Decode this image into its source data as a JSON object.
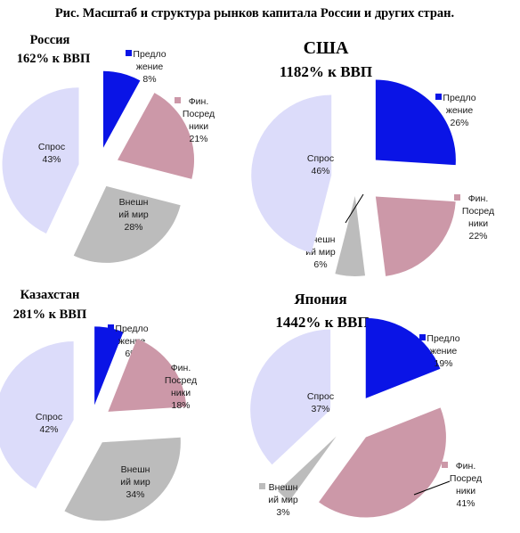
{
  "figure_title": "Рис. Масштаб и структура рынков капитала России и других стран.",
  "colors": {
    "supply": "#0a14e6",
    "fin_intermediaries": "#cc98a8",
    "external_world": "#bcbcbc",
    "demand": "#dcdcfa"
  },
  "chart_data": [
    {
      "type": "pie",
      "title": "Россия",
      "subtitle": "162% к ВВП",
      "slices": [
        {
          "key": "supply",
          "label": "Предло\nжение",
          "value": 8
        },
        {
          "key": "fin_intermediaries",
          "label": "Фин.\nПосред\nники",
          "value": 21
        },
        {
          "key": "external_world",
          "label": "Внешн\nий мир",
          "value": 28
        },
        {
          "key": "demand",
          "label": "Спрос",
          "value": 43
        }
      ]
    },
    {
      "type": "pie",
      "title": "США",
      "subtitle": "1182% к ВВП",
      "slices": [
        {
          "key": "supply",
          "label": "Предло\nжение",
          "value": 26
        },
        {
          "key": "fin_intermediaries",
          "label": "Фин.\nПосред\nники",
          "value": 22
        },
        {
          "key": "external_world",
          "label": "Внешн\nий мир",
          "value": 6
        },
        {
          "key": "demand",
          "label": "Спрос",
          "value": 46
        }
      ]
    },
    {
      "type": "pie",
      "title": "Казахстан",
      "subtitle": "281% к ВВП",
      "slices": [
        {
          "key": "supply",
          "label": "Предло\nжение",
          "value": 6
        },
        {
          "key": "fin_intermediaries",
          "label": "Фин.\nПосред\nники",
          "value": 18
        },
        {
          "key": "external_world",
          "label": "Внешн\nий мир",
          "value": 34
        },
        {
          "key": "demand",
          "label": "Спрос",
          "value": 42
        }
      ]
    },
    {
      "type": "pie",
      "title": "Япония",
      "subtitle": "1442% к ВВП",
      "slices": [
        {
          "key": "supply",
          "label": "Предло\nжение",
          "value": 19
        },
        {
          "key": "fin_intermediaries",
          "label": "Фин.\nПосред\nники",
          "value": 41
        },
        {
          "key": "external_world",
          "label": "Внешн\nий мир",
          "value": 3
        },
        {
          "key": "demand",
          "label": "Спрос",
          "value": 37
        }
      ]
    }
  ]
}
